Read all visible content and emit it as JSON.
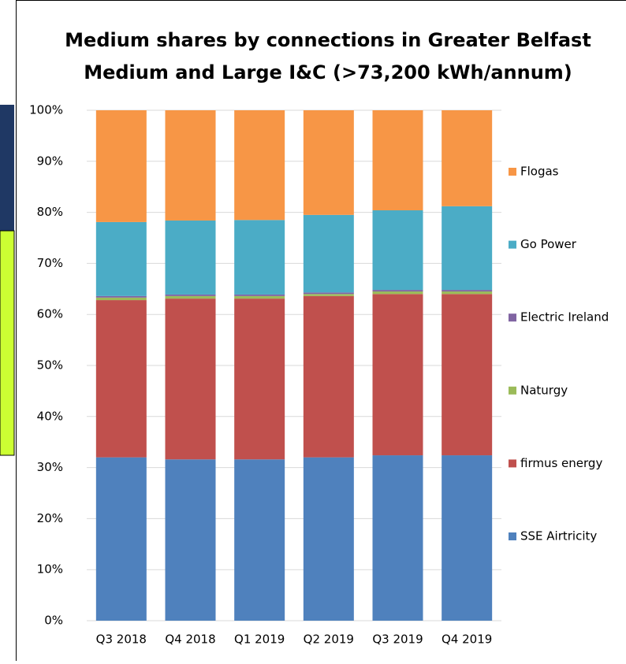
{
  "chart_data": {
    "type": "stacked_bar",
    "title": [
      "Medium shares by connections in Greater Belfast",
      "Medium and Large I&C (>73,200 kWh/annum)"
    ],
    "categories": [
      "Q3 2018",
      "Q4 2018",
      "Q1 2019",
      "Q2 2019",
      "Q3 2019",
      "Q4 2019"
    ],
    "series": [
      {
        "name": "SSE Airtricity",
        "color": "#4f81bd",
        "values": [
          32,
          31.6,
          31.6,
          32,
          32.4,
          32.4
        ]
      },
      {
        "name": "firmus energy",
        "color": "#c0504d",
        "values": [
          30.8,
          31.5,
          31.5,
          31.6,
          31.6,
          31.6
        ]
      },
      {
        "name": "Naturgy",
        "color": "#9bbb59",
        "values": [
          0.5,
          0.5,
          0.5,
          0.4,
          0.5,
          0.5
        ]
      },
      {
        "name": "Electric Ireland",
        "color": "#8064a2",
        "values": [
          0.3,
          0.3,
          0.3,
          0.3,
          0.3,
          0.3
        ]
      },
      {
        "name": "Go Power",
        "color": "#4bacc6",
        "values": [
          14.5,
          14.5,
          14.6,
          15.2,
          15.6,
          16.4
        ]
      },
      {
        "name": "Flogas",
        "color": "#f79646",
        "values": [
          21.9,
          21.6,
          21.5,
          20.5,
          19.6,
          18.8
        ]
      }
    ],
    "ylim": [
      0,
      100
    ],
    "yticks": [
      {
        "value": 0,
        "label": "0%"
      },
      {
        "value": 10,
        "label": "10%"
      },
      {
        "value": 20,
        "label": "20%"
      },
      {
        "value": 30,
        "label": "30%"
      },
      {
        "value": 40,
        "label": "40%"
      },
      {
        "value": 50,
        "label": "50%"
      },
      {
        "value": 60,
        "label": "60%"
      },
      {
        "value": 70,
        "label": "70%"
      },
      {
        "value": 80,
        "label": "80%"
      },
      {
        "value": 90,
        "label": "90%"
      },
      {
        "value": 100,
        "label": "100%"
      }
    ],
    "grid": true,
    "legend": "right"
  }
}
